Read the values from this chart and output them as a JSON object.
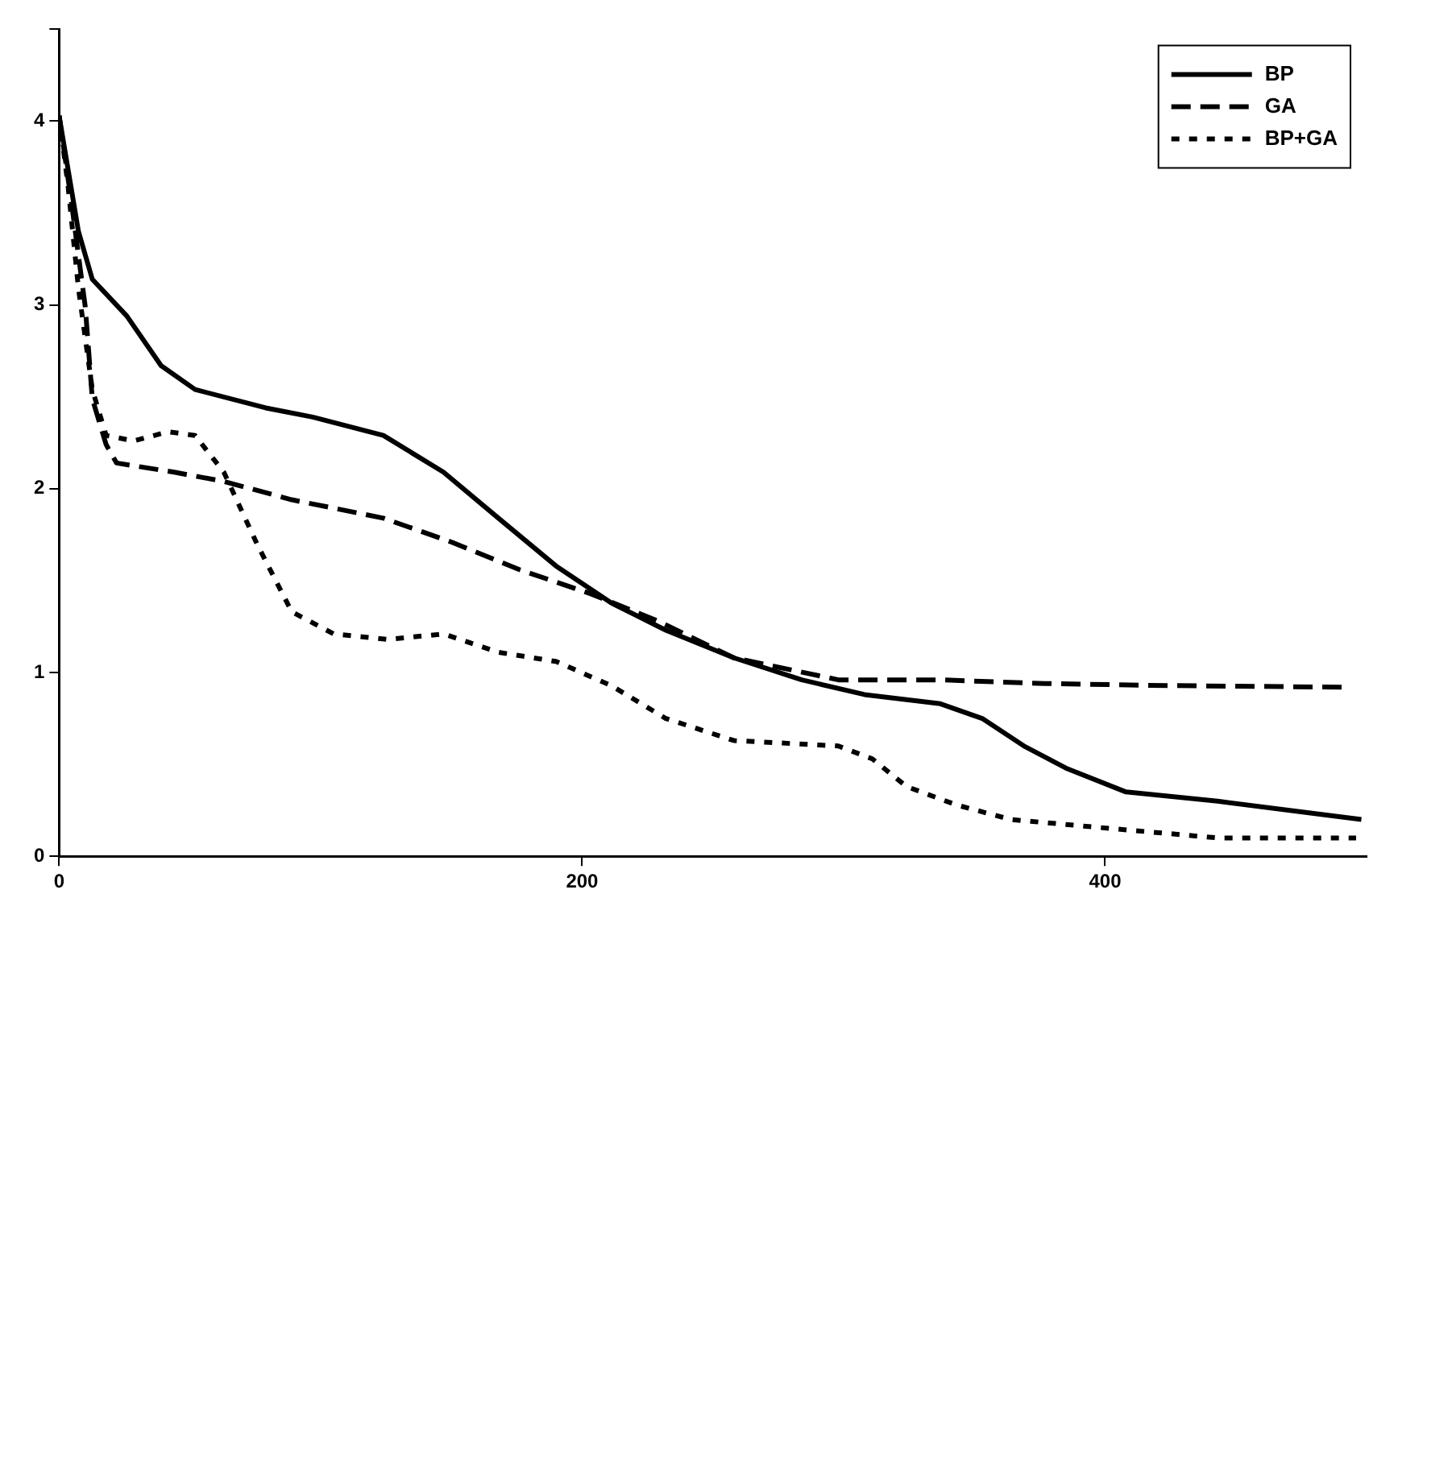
{
  "chart_data": {
    "type": "line",
    "xlim": [
      0,
      500
    ],
    "xticks": [
      0,
      200,
      400
    ],
    "ylim": [
      0,
      4.5
    ],
    "yticks": [
      0,
      1,
      2,
      3,
      4,
      {
        "value": 4.5,
        "label": null
      }
    ],
    "grid": false,
    "legend": "top right",
    "marker": "none",
    "series": [
      {
        "name": "BP",
        "color": "#000000",
        "line_style": "solid",
        "x": [
          0,
          7.4,
          12.7,
          25.9,
          39,
          52,
          79,
          97,
          124,
          147,
          168,
          190,
          211,
          232,
          258,
          284,
          308,
          337,
          353,
          369,
          385,
          408,
          443,
          498
        ],
        "values": [
          4.03,
          3.4,
          3.14,
          2.94,
          2.67,
          2.54,
          2.44,
          2.39,
          2.29,
          2.09,
          1.84,
          1.58,
          1.38,
          1.23,
          1.08,
          0.96,
          0.88,
          0.83,
          0.75,
          0.6,
          0.48,
          0.35,
          0.3,
          0.2
        ]
      },
      {
        "name": "GA",
        "color": "#000000",
        "line_style": "dashed",
        "x": [
          0,
          4.8,
          10,
          12.7,
          18,
          22,
          44,
          63,
          89,
          124,
          150,
          176,
          203,
          229,
          258,
          298,
          337,
          377,
          417,
          492
        ],
        "values": [
          4.03,
          3.55,
          2.99,
          2.49,
          2.24,
          2.14,
          2.09,
          2.04,
          1.94,
          1.84,
          1.71,
          1.56,
          1.43,
          1.28,
          1.08,
          0.96,
          0.96,
          0.94,
          0.93,
          0.92
        ]
      },
      {
        "name": "BP+GA",
        "color": "#000000",
        "line_style": "dotted",
        "x": [
          0,
          3.4,
          7.4,
          12.7,
          18,
          28.5,
          41.7,
          52,
          63,
          76,
          89,
          105,
          126,
          147,
          168,
          190,
          211,
          232,
          258,
          298,
          311,
          324,
          343,
          364,
          403,
          443,
          496
        ],
        "values": [
          4.03,
          3.65,
          3.09,
          2.54,
          2.29,
          2.26,
          2.31,
          2.29,
          2.09,
          1.69,
          1.33,
          1.21,
          1.18,
          1.21,
          1.11,
          1.06,
          0.93,
          0.75,
          0.63,
          0.6,
          0.53,
          0.38,
          0.28,
          0.2,
          0.15,
          0.1,
          0.1
        ]
      }
    ]
  }
}
